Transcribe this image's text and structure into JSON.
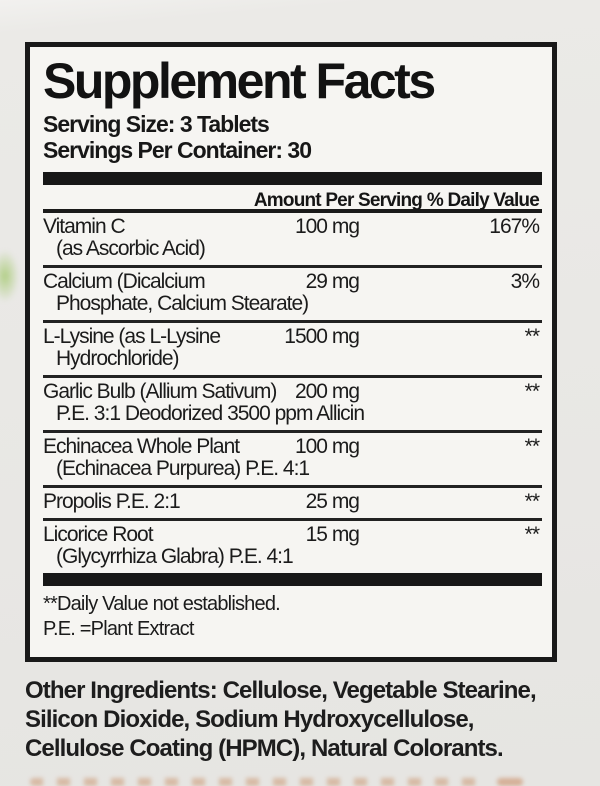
{
  "panel": {
    "title": "Supplement Facts",
    "serving_size": "Serving Size: 3 Tablets",
    "servings_per_container": "Servings Per Container: 30",
    "columns": {
      "amount": "Amount Per Serving",
      "dv": "% Daily Value"
    },
    "rows": [
      {
        "name": "Vitamin C",
        "name2": "(as Ascorbic Acid)",
        "amount": "100 mg",
        "dv": "167%"
      },
      {
        "name": "Calcium (Dicalcium",
        "name2": "Phosphate, Calcium Stearate)",
        "amount": "29 mg",
        "dv": "3%"
      },
      {
        "name": "L-Lysine (as L-Lysine",
        "name2": "Hydrochloride)",
        "amount": "1500 mg",
        "dv": "**"
      },
      {
        "name": "Garlic Bulb (Allium Sativum)",
        "name2": "P.E. 3:1 Deodorized 3500 ppm Allicin",
        "amount": "200 mg",
        "dv": "**"
      },
      {
        "name": "Echinacea Whole Plant",
        "name2": "(Echinacea Purpurea) P.E. 4:1",
        "amount": "100 mg",
        "dv": "**"
      },
      {
        "name": "Propolis P.E. 2:1",
        "name2": "",
        "amount": "25 mg",
        "dv": "**"
      },
      {
        "name": "Licorice Root",
        "name2": "(Glycyrrhiza Glabra) P.E. 4:1",
        "amount": "15 mg",
        "dv": "**"
      }
    ],
    "footnotes": [
      "**Daily Value not established.",
      "P.E. =Plant Extract"
    ]
  },
  "other_ingredients": {
    "label": "Other Ingredients:",
    "text": " Cellulose, Vegetable Stearine, Silicon Dioxide, Sodium Hydroxycellulose, Cellulose Coating (HPMC), Natural Colorants."
  },
  "colors": {
    "label_paper": "#f6f5f2",
    "panel_ink": "#191919",
    "photo_background": "#e9e8e5",
    "background_blob_green": "#a8ca76",
    "cutoff_text_orange": "#c17a48"
  }
}
